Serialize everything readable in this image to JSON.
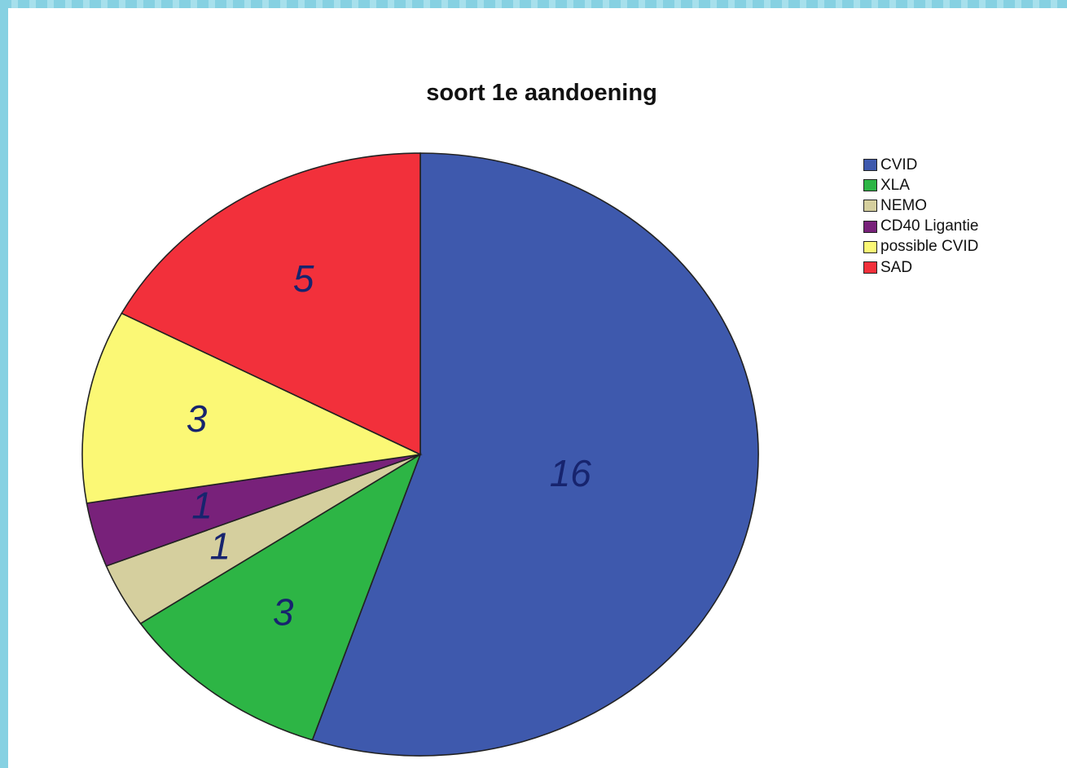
{
  "chart_data": {
    "type": "pie",
    "title": "soort 1e aandoening",
    "categories": [
      "CVID",
      "XLA",
      "NEMO",
      "CD40 Ligantie",
      "possible CVID",
      "SAD"
    ],
    "values": [
      16,
      3,
      1,
      1,
      3,
      5
    ],
    "colors": [
      "#3e59ad",
      "#2db545",
      "#d5cf9e",
      "#78217a",
      "#fbf875",
      "#f2303b"
    ],
    "data_labels": [
      "16",
      "3",
      "1",
      "1",
      "3",
      "5"
    ],
    "legend_position": "top-right"
  },
  "frame": {
    "border_color": "#86d1e2"
  }
}
